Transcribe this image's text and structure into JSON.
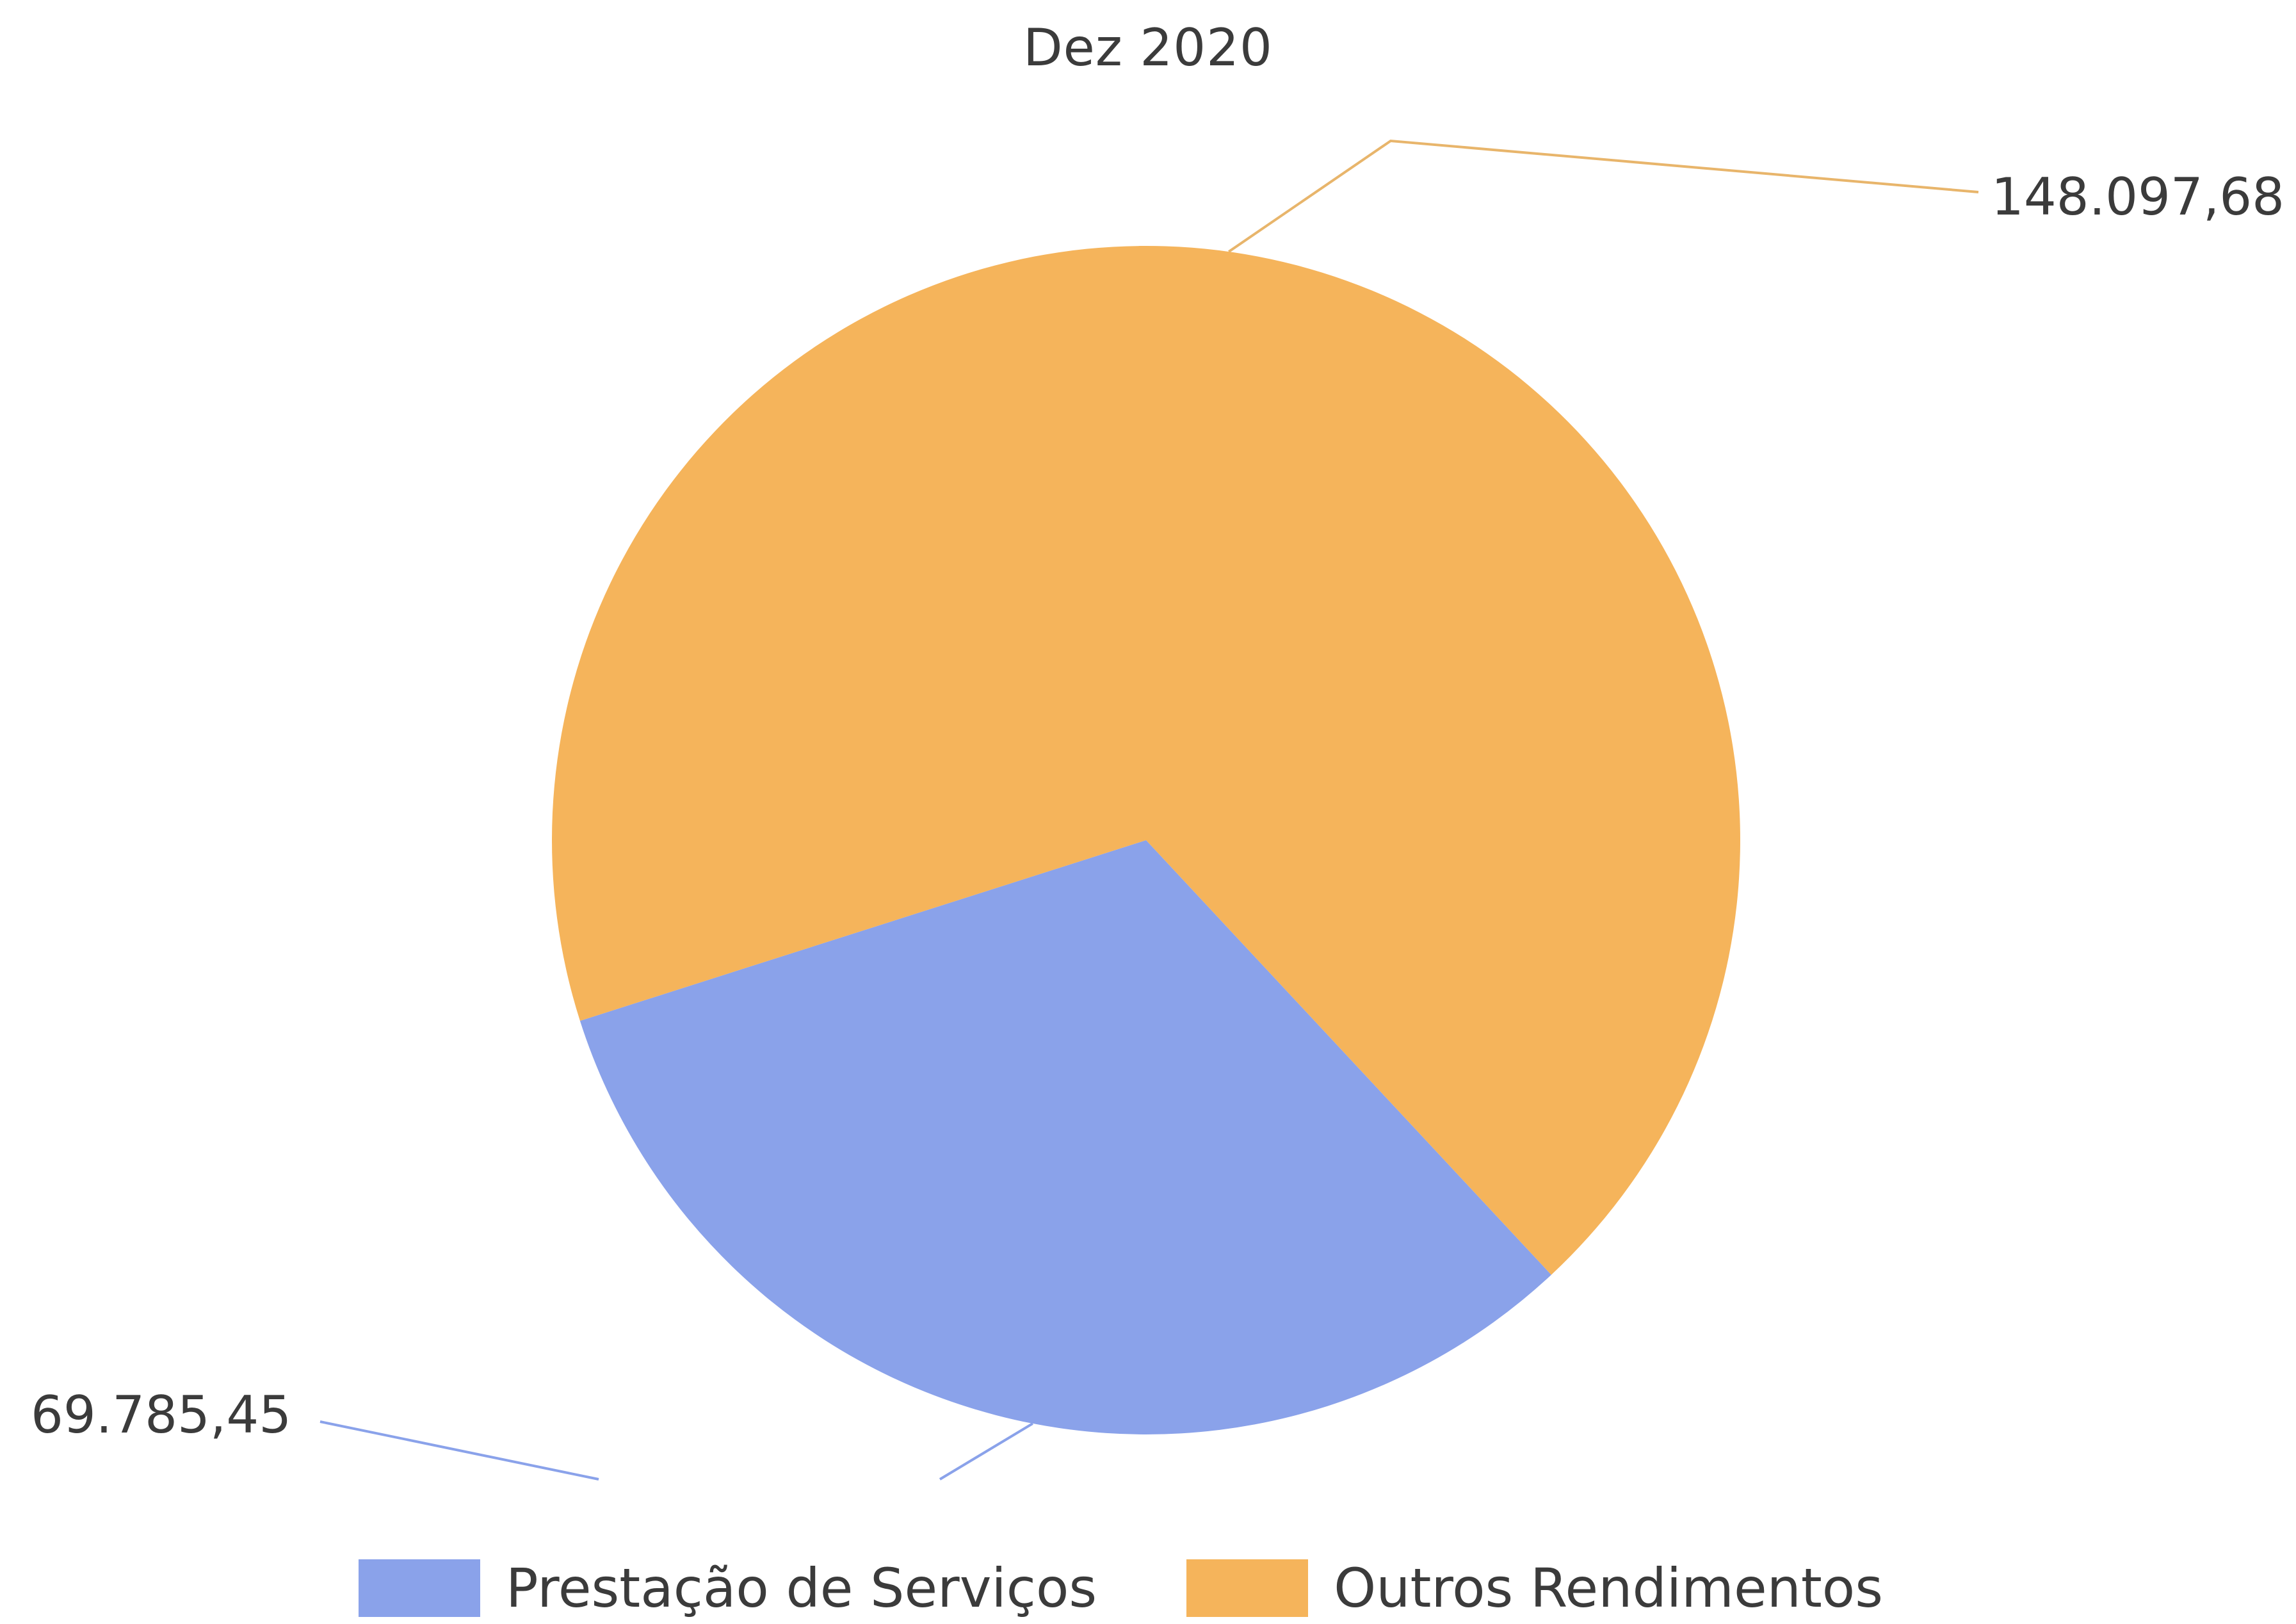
{
  "chart_data": {
    "type": "pie",
    "title": "Dez 2020",
    "slices": [
      {
        "name": "Prestação de Serviços",
        "value": 69785.45,
        "label": "69.785,45",
        "color": "#8aa2ea"
      },
      {
        "name": "Outros Rendimentos",
        "value": 148097.68,
        "label": "148.097,68",
        "color": "#f5b45b"
      }
    ],
    "legend": {
      "placement": "bottom",
      "items": [
        "Prestação de Serviços",
        "Outros Rendimentos"
      ]
    }
  }
}
